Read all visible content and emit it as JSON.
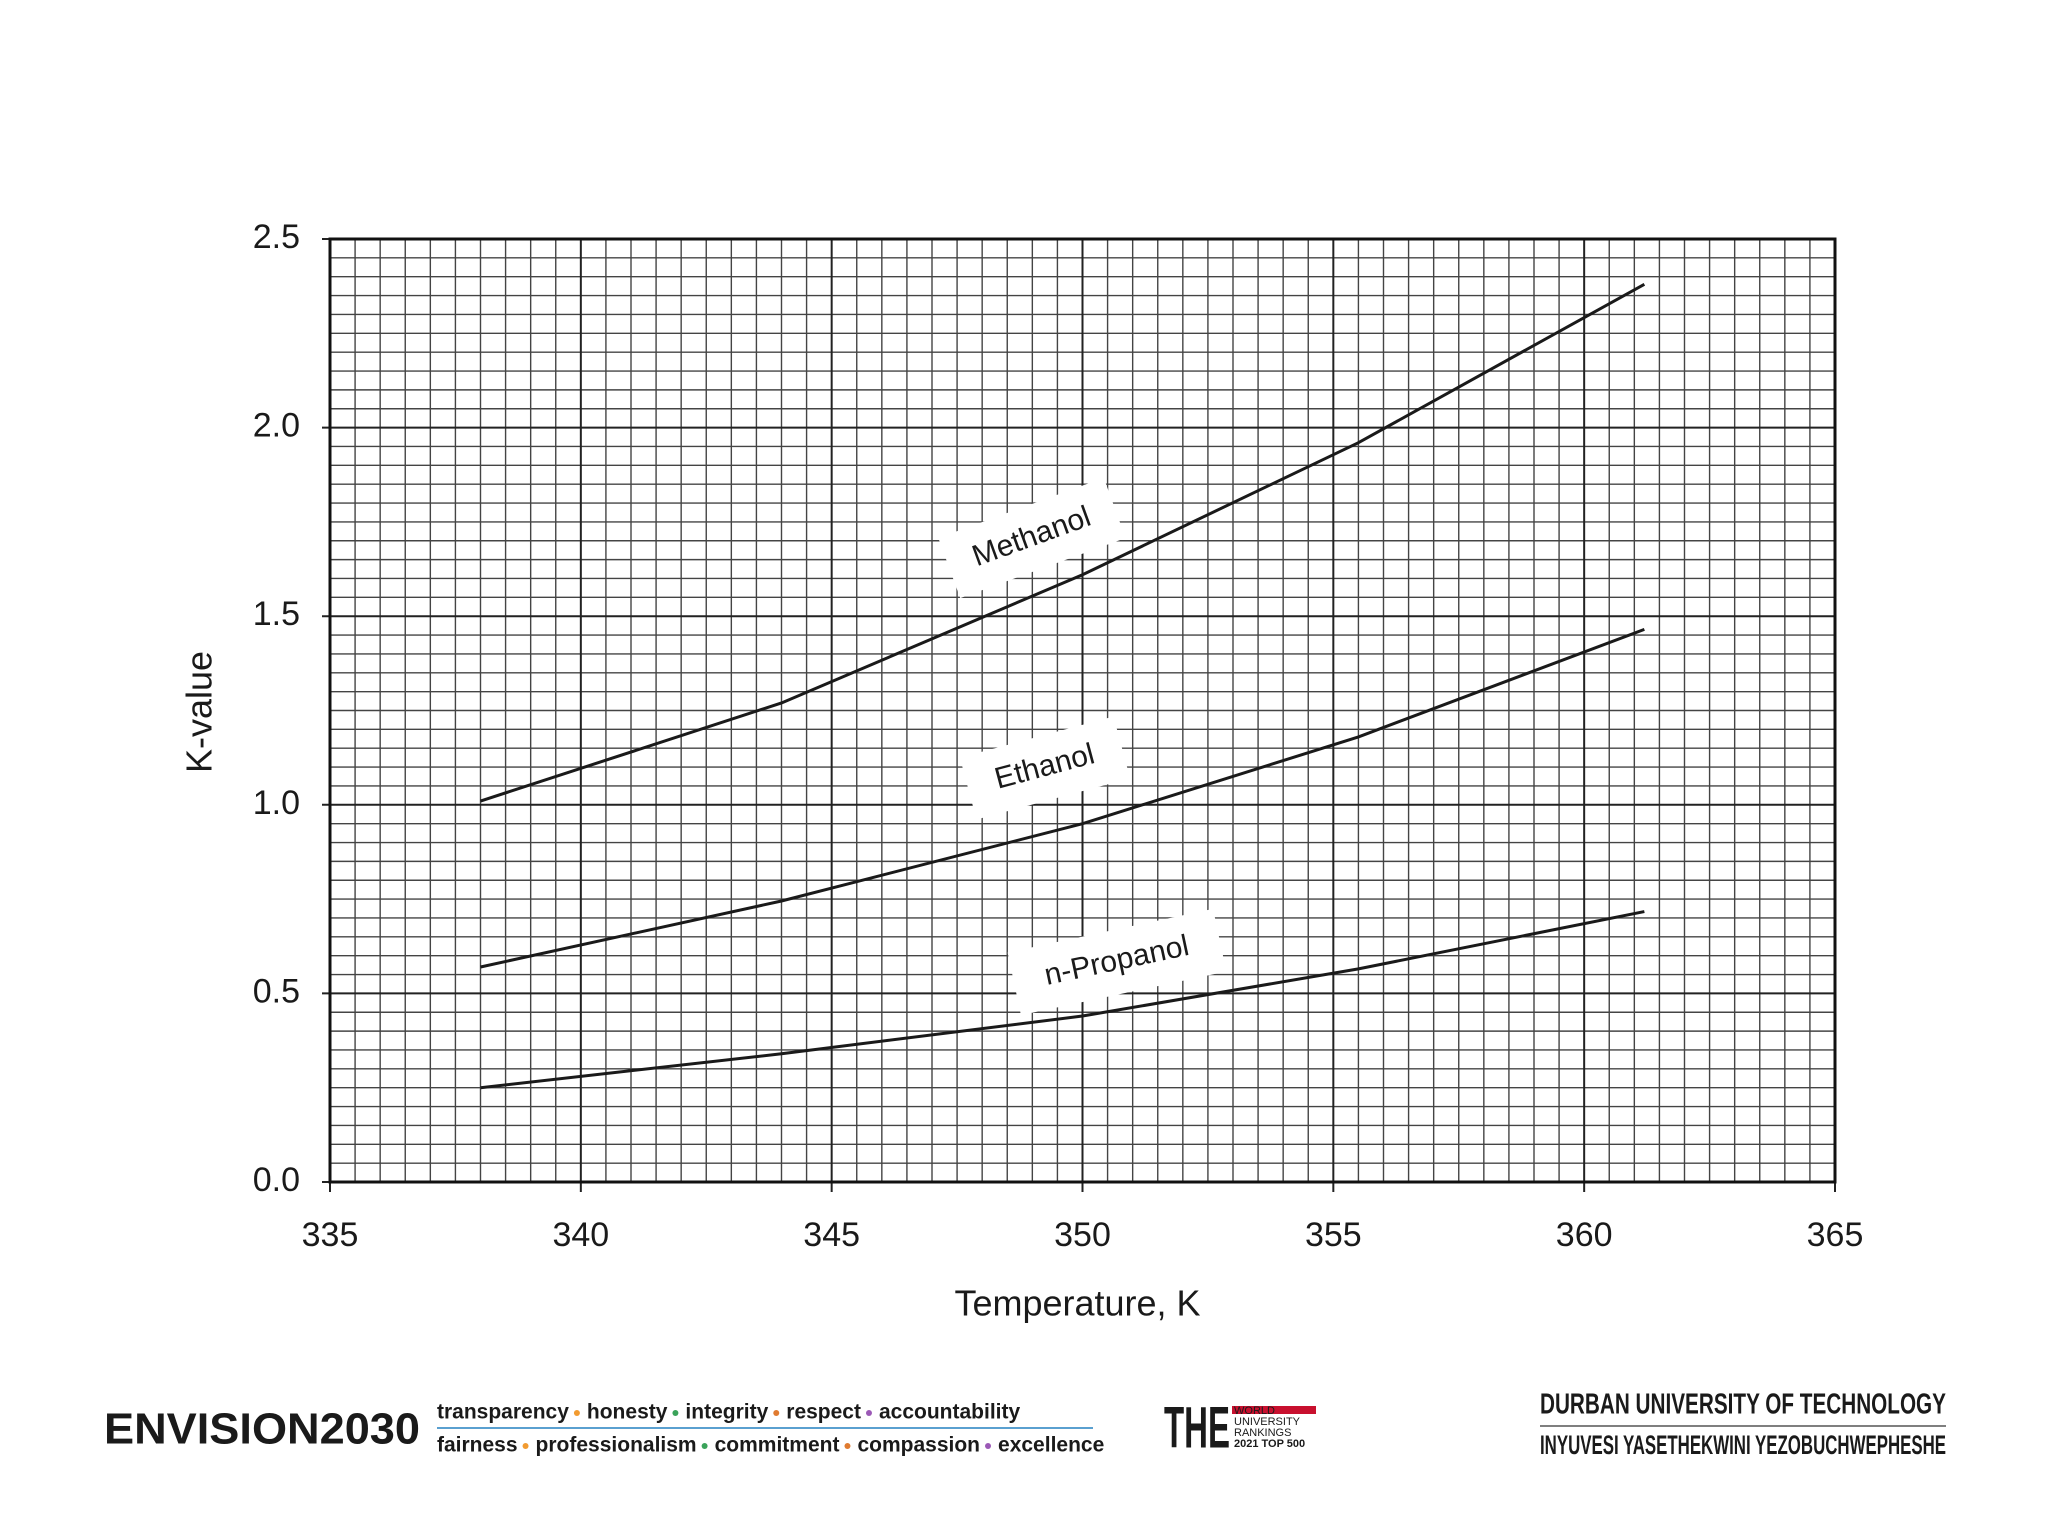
{
  "chart_data": {
    "type": "line",
    "xlabel": "Temperature, K",
    "ylabel": "K-value",
    "x": [
      338,
      344,
      350,
      355.5,
      361.2
    ],
    "series": [
      {
        "name": "Methanol",
        "color": "#1a1a1a",
        "values": [
          1.01,
          1.27,
          1.61,
          1.96,
          2.38
        ]
      },
      {
        "name": "Ethanol",
        "color": "#1a1a1a",
        "values": [
          0.57,
          0.745,
          0.95,
          1.18,
          1.465
        ]
      },
      {
        "name": "n-Propanol",
        "color": "#1a1a1a",
        "values": [
          0.25,
          0.34,
          0.44,
          0.565,
          0.717
        ]
      }
    ],
    "xlim": [
      335,
      365
    ],
    "xticks": [
      335,
      340,
      345,
      350,
      355,
      360,
      365
    ],
    "ylim": [
      0,
      2.5
    ],
    "yticks": [
      {
        "value": 0,
        "label": "0.0"
      },
      {
        "value": 0.5,
        "label": "0.5"
      },
      {
        "value": 1,
        "label": "1.0"
      },
      {
        "value": 1.5,
        "label": "1.5"
      },
      {
        "value": 2,
        "label": "2.0"
      },
      {
        "value": 2.5,
        "label": "2.5"
      }
    ],
    "grid": true
  },
  "footer": {
    "brand": "ENVISION2030",
    "values_row1": [
      "transparency",
      "honesty",
      "integrity",
      "respect",
      "accountability"
    ],
    "values_row2": [
      "fairness",
      "professionalism",
      "commitment",
      "compassion",
      "excellence"
    ],
    "ranking_logo": "THE",
    "ranking_lines": [
      "WORLD",
      "UNIVERSITY",
      "RANKINGS",
      "2021 TOP 500"
    ],
    "university": "DURBAN UNIVERSITY OF TECHNOLOGY",
    "university_zulu": "INYUVESI YASETHEKWINI YEZOBUCHWEPHESHE"
  }
}
